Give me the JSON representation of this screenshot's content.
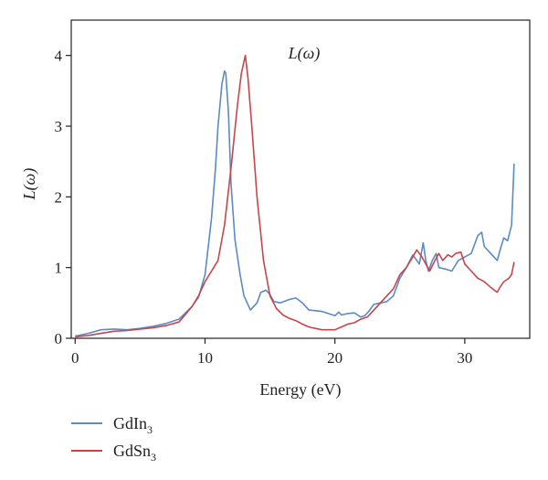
{
  "chart_data": {
    "type": "line",
    "title": "L(ω)",
    "xlabel": "Energy (eV)",
    "ylabel": "L(ω)",
    "xlim": [
      -0.3,
      35
    ],
    "ylim": [
      0,
      4.5
    ],
    "xticks": [
      0,
      10,
      20,
      30
    ],
    "yticks": [
      0,
      1,
      2,
      3,
      4
    ],
    "grid": false,
    "legend_position": "bottom-left",
    "series": [
      {
        "name": "GdIn3",
        "display_name": [
          "GdIn",
          "3"
        ],
        "color": "#5b8bc3",
        "x": [
          0,
          1,
          2,
          3,
          4,
          5,
          6,
          7,
          8,
          9,
          9.5,
          10,
          10.5,
          10.8,
          11,
          11.3,
          11.5,
          11.6,
          11.8,
          12,
          12.3,
          12.7,
          13,
          13.5,
          14,
          14.3,
          14.7,
          15,
          15.3,
          15.8,
          16.5,
          17,
          17.5,
          18,
          19,
          20,
          20.3,
          20.5,
          21,
          21.5,
          22,
          22.3,
          22.6,
          23,
          23.5,
          24,
          24.5,
          25,
          25.5,
          26,
          26.5,
          26.8,
          27,
          27.2,
          27.5,
          27.8,
          28,
          28.5,
          29,
          29.5,
          30,
          30.5,
          31,
          31.3,
          31.5,
          32,
          32.5,
          32.8,
          33,
          33.3,
          33.6,
          33.8
        ],
        "y": [
          0.03,
          0.07,
          0.12,
          0.13,
          0.12,
          0.14,
          0.17,
          0.21,
          0.27,
          0.45,
          0.58,
          0.9,
          1.7,
          2.4,
          3.0,
          3.6,
          3.78,
          3.75,
          3.2,
          2.2,
          1.4,
          0.9,
          0.6,
          0.4,
          0.5,
          0.65,
          0.68,
          0.62,
          0.52,
          0.5,
          0.55,
          0.57,
          0.5,
          0.4,
          0.38,
          0.32,
          0.37,
          0.33,
          0.35,
          0.36,
          0.3,
          0.32,
          0.38,
          0.48,
          0.5,
          0.52,
          0.6,
          0.85,
          1.0,
          1.18,
          1.05,
          1.35,
          1.1,
          0.95,
          1.1,
          1.2,
          1.0,
          0.98,
          0.95,
          1.1,
          1.15,
          1.2,
          1.45,
          1.5,
          1.3,
          1.2,
          1.1,
          1.3,
          1.42,
          1.38,
          1.6,
          2.47
        ]
      },
      {
        "name": "GdSn3",
        "display_name": [
          "GdSn",
          "3"
        ],
        "color": "#c9454a",
        "x": [
          0,
          1,
          2,
          3,
          4,
          5,
          6,
          7,
          8,
          9,
          9.5,
          10,
          10.5,
          11,
          11.5,
          12,
          12.5,
          12.8,
          13.1,
          13.3,
          13.6,
          14,
          14.5,
          15,
          15.5,
          16,
          16.5,
          17,
          17.5,
          18,
          18.5,
          19,
          19.5,
          20,
          20.5,
          21,
          21.5,
          22,
          22.5,
          23,
          23.5,
          24,
          24.5,
          25,
          25.5,
          26,
          26.3,
          26.7,
          27,
          27.3,
          27.7,
          28,
          28.3,
          28.7,
          29,
          29.3,
          29.7,
          30,
          30.5,
          31,
          31.5,
          32,
          32.5,
          32.7,
          33,
          33.4,
          33.6,
          33.8
        ],
        "y": [
          0.02,
          0.04,
          0.07,
          0.1,
          0.11,
          0.13,
          0.15,
          0.18,
          0.23,
          0.45,
          0.6,
          0.8,
          0.95,
          1.1,
          1.6,
          2.4,
          3.3,
          3.75,
          4.0,
          3.7,
          3.0,
          2.0,
          1.1,
          0.6,
          0.42,
          0.33,
          0.28,
          0.25,
          0.2,
          0.16,
          0.14,
          0.12,
          0.12,
          0.12,
          0.16,
          0.2,
          0.22,
          0.27,
          0.3,
          0.4,
          0.5,
          0.6,
          0.7,
          0.9,
          1.0,
          1.15,
          1.25,
          1.15,
          1.05,
          0.95,
          1.1,
          1.2,
          1.1,
          1.18,
          1.15,
          1.2,
          1.22,
          1.05,
          0.95,
          0.85,
          0.8,
          0.72,
          0.65,
          0.72,
          0.8,
          0.85,
          0.9,
          1.08
        ]
      }
    ]
  }
}
